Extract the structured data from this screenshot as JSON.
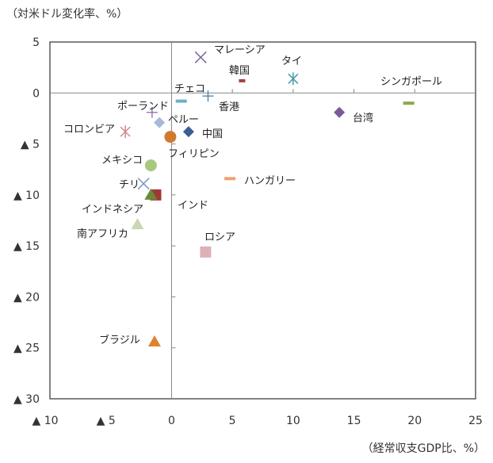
{
  "chart_data": {
    "type": "scatter",
    "ylabel": "（対米ドル変化率、%）",
    "xlabel": "（経常収支GDP比、%）",
    "xlim": [
      -10,
      25
    ],
    "ylim": [
      -30,
      5
    ],
    "x_ticks": [
      -10,
      -5,
      0,
      5,
      10,
      15,
      20,
      25
    ],
    "x_tick_labels": [
      "▲ 10",
      "▲ 5",
      "0",
      "5",
      "10",
      "15",
      "20",
      "25"
    ],
    "y_ticks": [
      5,
      0,
      -5,
      -10,
      -15,
      -20,
      -25,
      -30
    ],
    "y_tick_labels": [
      "5",
      "0",
      "▲ 5",
      "▲ 10",
      "▲ 15",
      "▲ 20",
      "▲ 25",
      "▲ 30"
    ],
    "grid": false,
    "points": [
      {
        "label": "マレーシア",
        "x": 2.4,
        "y": 3.5,
        "marker": "x",
        "color": "#7a6a9a"
      },
      {
        "label": "韓国",
        "x": 5.8,
        "y": 1.2,
        "marker": "dash",
        "color": "#a04040"
      },
      {
        "label": "タイ",
        "x": 10.0,
        "y": 1.4,
        "marker": "asterisk",
        "color": "#4a9aaa"
      },
      {
        "label": "シンガポール",
        "x": 19.5,
        "y": -1.0,
        "marker": "dash",
        "color": "#8aaa4a"
      },
      {
        "label": "チェコ",
        "x": 0.8,
        "y": -0.8,
        "marker": "dash",
        "color": "#6ab0c8"
      },
      {
        "label": "香港",
        "x": 3.0,
        "y": -0.3,
        "marker": "plus",
        "color": "#4a7aaa"
      },
      {
        "label": "ポーランド",
        "x": -1.6,
        "y": -1.9,
        "marker": "plus",
        "color": "#8a6aaa"
      },
      {
        "label": "ペルー",
        "x": -1.0,
        "y": -2.9,
        "marker": "diamond",
        "color": "#a8b8d8"
      },
      {
        "label": "コロンビア",
        "x": -3.8,
        "y": -3.8,
        "marker": "asterisk",
        "color": "#d08888"
      },
      {
        "label": "中国",
        "x": 1.4,
        "y": -3.8,
        "marker": "diamond",
        "color": "#3a5f95"
      },
      {
        "label": "フィリピン",
        "x": -0.1,
        "y": -4.3,
        "marker": "circle",
        "color": "#d07a30"
      },
      {
        "label": "台湾",
        "x": 13.8,
        "y": -1.9,
        "marker": "diamond",
        "color": "#7a5a9a"
      },
      {
        "label": "メキシコ",
        "x": -1.7,
        "y": -7.1,
        "marker": "circle",
        "color": "#a8c880"
      },
      {
        "label": "チリ",
        "x": -2.3,
        "y": -8.9,
        "marker": "x",
        "color": "#7a98c8"
      },
      {
        "label": "インド",
        "x": -1.3,
        "y": -10.0,
        "marker": "square",
        "color": "#a03838"
      },
      {
        "label": "インドネシア",
        "x": -1.7,
        "y": -10.0,
        "marker": "triangle",
        "color": "#6a8a3a"
      },
      {
        "label": "ハンガリー",
        "x": 4.8,
        "y": -8.4,
        "marker": "dash",
        "color": "#f0a070"
      },
      {
        "label": "南アフリカ",
        "x": -2.8,
        "y": -12.9,
        "marker": "triangle",
        "color": "#c8d8b0"
      },
      {
        "label": "ロシア",
        "x": 2.8,
        "y": -15.6,
        "marker": "square",
        "color": "#e0b0b8"
      },
      {
        "label": "ブラジル",
        "x": -1.4,
        "y": -24.4,
        "marker": "triangle",
        "color": "#e08030"
      }
    ]
  }
}
